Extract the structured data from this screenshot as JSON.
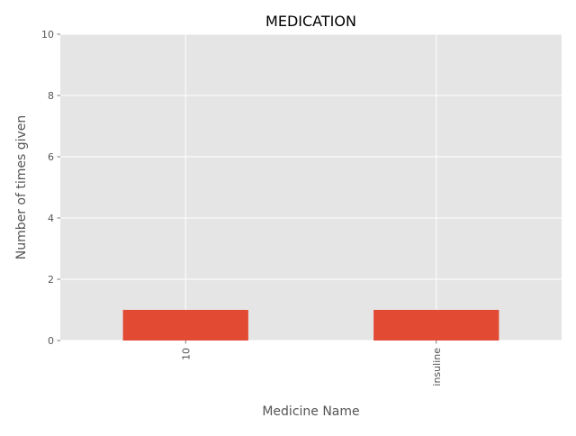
{
  "chart_data": {
    "type": "bar",
    "title": "MEDICATION",
    "xlabel": "Medicine Name",
    "ylabel": "Number of times given",
    "categories": [
      "10",
      "insuline"
    ],
    "values": [
      1,
      1
    ],
    "ylim": [
      0,
      10
    ],
    "yticks": [
      "0",
      "2",
      "4",
      "6",
      "8",
      "10"
    ],
    "grid": true,
    "x_tick_rotation": "vertical",
    "colors": {
      "bar": "#E24A33",
      "plot_background": "#E5E5E5",
      "grid": "#FFFFFF"
    }
  }
}
